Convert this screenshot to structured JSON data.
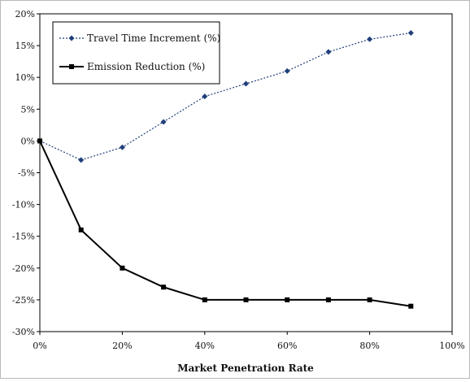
{
  "chart_data": {
    "type": "line",
    "title": "",
    "xlabel": "Market Penetration Rate",
    "ylabel": "",
    "x": [
      0,
      10,
      20,
      30,
      40,
      50,
      60,
      70,
      80,
      90
    ],
    "xlim": [
      0,
      100
    ],
    "ylim": [
      -30,
      20
    ],
    "x_ticks": [
      "0%",
      "20%",
      "40%",
      "60%",
      "80%",
      "100%"
    ],
    "y_ticks": [
      "20%",
      "15%",
      "10%",
      "5%",
      "0%",
      "-5%",
      "-10%",
      "-15%",
      "-20%",
      "-25%",
      "-30%"
    ],
    "grid": false,
    "legend_position": "top-left",
    "series": [
      {
        "name": "Travel Time Increment (%)",
        "values": [
          0,
          -3,
          -1,
          3,
          7,
          9,
          11,
          14,
          16,
          17
        ],
        "marker": "diamond",
        "line_style": "dotted",
        "color": "#1f3f7a"
      },
      {
        "name": "Emission Reduction (%)",
        "values": [
          0,
          -14,
          -20,
          -23,
          -25,
          -25,
          -25,
          -25,
          -25,
          -26
        ],
        "marker": "square",
        "line_style": "solid",
        "color": "#000000"
      }
    ]
  }
}
